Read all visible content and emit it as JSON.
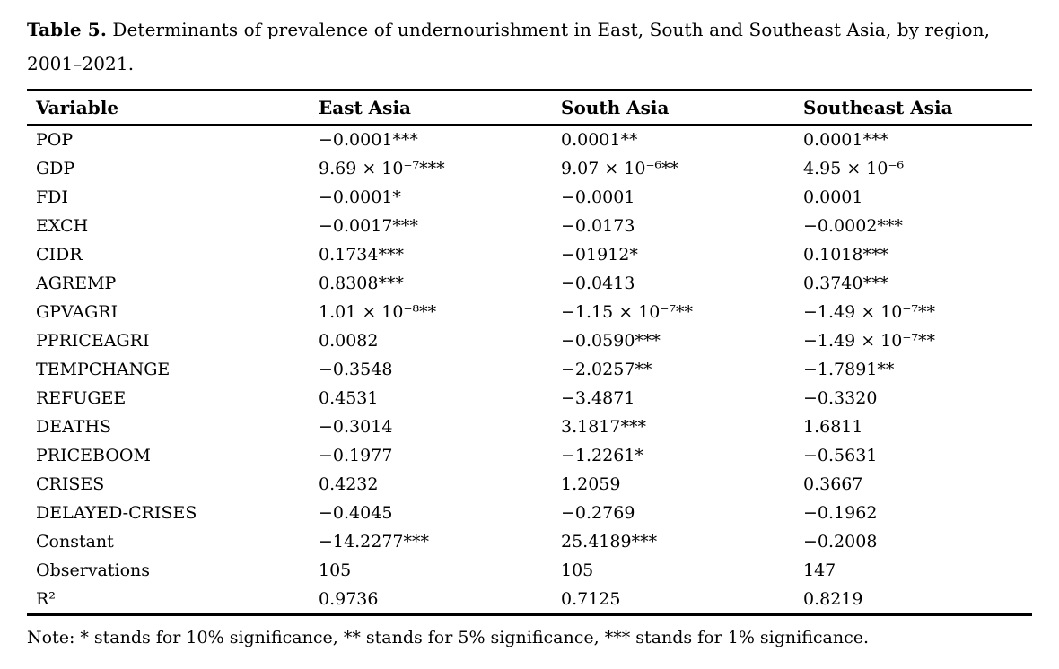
{
  "caption": {
    "label": "Table 5.",
    "line1": "Determinants of prevalence of undernourishment in East, South and Southeast Asia, by region,",
    "line2": "2001–2021."
  },
  "table": {
    "columns": [
      "Variable",
      "East Asia",
      "South Asia",
      "Southeast Asia"
    ],
    "rows": [
      {
        "variable": "POP",
        "east": "−0.0001***",
        "south": "0.0001**",
        "southeast": "0.0001***"
      },
      {
        "variable": "GDP",
        "east": "9.69 × 10⁻⁷***",
        "south": "9.07 × 10⁻⁶**",
        "southeast": "4.95 × 10⁻⁶"
      },
      {
        "variable": "FDI",
        "east": "−0.0001*",
        "south": "−0.0001",
        "southeast": "0.0001"
      },
      {
        "variable": "EXCH",
        "east": "−0.0017***",
        "south": "−0.0173",
        "southeast": "−0.0002***"
      },
      {
        "variable": "CIDR",
        "east": "0.1734***",
        "south": "−01912*",
        "southeast": "0.1018***"
      },
      {
        "variable": "AGREMP",
        "east": "0.8308***",
        "south": "−0.0413",
        "southeast": "0.3740***"
      },
      {
        "variable": "GPVAGRI",
        "east": "1.01 × 10⁻⁸**",
        "south": "−1.15 × 10⁻⁷**",
        "southeast": "−1.49 × 10⁻⁷**"
      },
      {
        "variable": "PPRICEAGRI",
        "east": "0.0082",
        "south": "−0.0590***",
        "southeast": "−1.49 × 10⁻⁷**"
      },
      {
        "variable": "TEMPCHANGE",
        "east": "−0.3548",
        "south": "−2.0257**",
        "southeast": "−1.7891**"
      },
      {
        "variable": "REFUGEE",
        "east": "0.4531",
        "south": "−3.4871",
        "southeast": "−0.3320"
      },
      {
        "variable": "DEATHS",
        "east": "−0.3014",
        "south": "3.1817***",
        "southeast": "1.6811"
      },
      {
        "variable": "PRICEBOOM",
        "east": "−0.1977",
        "south": "−1.2261*",
        "southeast": "−0.5631"
      },
      {
        "variable": "CRISES",
        "east": "0.4232",
        "south": "1.2059",
        "southeast": "0.3667"
      },
      {
        "variable": "DELAYED-CRISES",
        "east": "−0.4045",
        "south": "−0.2769",
        "southeast": "−0.1962"
      },
      {
        "variable": "Constant",
        "east": "−14.2277***",
        "south": "25.4189***",
        "southeast": "−0.2008"
      },
      {
        "variable": "Observations",
        "east": "105",
        "south": "105",
        "southeast": "147"
      },
      {
        "variable": "R²",
        "east": "0.9736",
        "south": "0.7125",
        "southeast": "0.8219"
      }
    ]
  },
  "note": "Note: * stands for 10% significance, ** stands for 5% significance, *** stands for 1% significance."
}
